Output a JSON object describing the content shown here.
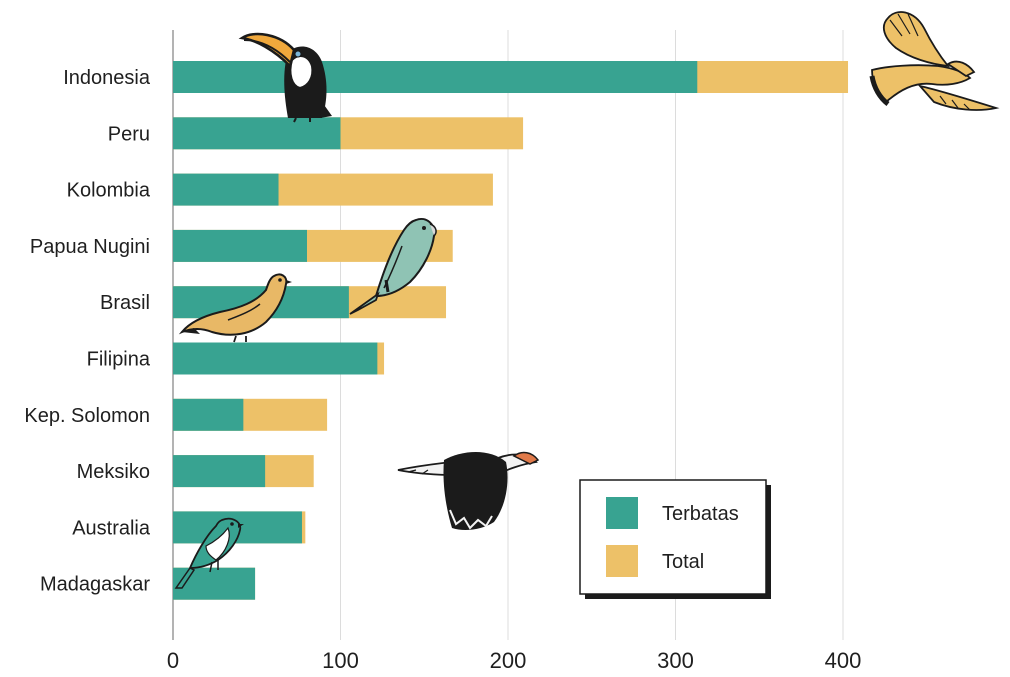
{
  "chart_data": {
    "type": "bar",
    "orientation": "horizontal",
    "stacked": true,
    "categories": [
      "Indonesia",
      "Peru",
      "Kolombia",
      "Papua Nugini",
      "Brasil",
      "Filipina",
      "Kep. Solomon",
      "Meksiko",
      "Australia",
      "Madagaskar"
    ],
    "series": [
      {
        "name": "Terbatas",
        "color": "#38a391",
        "values": [
          313,
          100,
          63,
          80,
          105,
          122,
          42,
          55,
          77,
          49
        ]
      },
      {
        "name": "Total",
        "color": "#edc168",
        "values": [
          403,
          209,
          191,
          167,
          163,
          126,
          92,
          84,
          79,
          49
        ]
      }
    ],
    "xlim": [
      0,
      400
    ],
    "xticks": [
      "0",
      "100",
      "200",
      "300",
      "400"
    ],
    "grid": true,
    "legend_position": "bottom-right",
    "illustrations": [
      "toucan-illustration",
      "hawk-illustration",
      "parakeet-illustration",
      "dove-illustration",
      "eagle-illustration",
      "songbird-illustration"
    ]
  }
}
